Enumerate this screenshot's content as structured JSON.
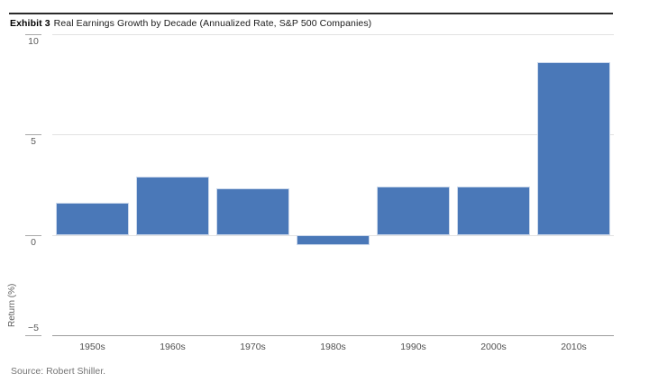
{
  "header": {
    "exhibit_label": "Exhibit 3",
    "title": "Real Earnings Growth by Decade (Annualized Rate, S&P 500 Companies)"
  },
  "footer": {
    "source": "Source: Robert Shiller."
  },
  "colors": {
    "bar_fill": "#4a78b8",
    "bar_edge": "#ccd9ec",
    "gridline": "#e2e2e2",
    "axis_line": "#9c9c9c",
    "tick_text": "#5a5a5a",
    "title_text": "#1a1a1a",
    "source_text": "#757575"
  },
  "chart_data": {
    "type": "bar",
    "title": "Real Earnings Growth by Decade (Annualized Rate, S&P 500 Companies)",
    "categories": [
      "1950s",
      "1960s",
      "1970s",
      "1980s",
      "1990s",
      "2000s",
      "2010s"
    ],
    "values": [
      1.6,
      2.9,
      2.3,
      -0.5,
      2.4,
      2.4,
      8.6
    ],
    "xlabel": "",
    "ylabel": "Return (%)",
    "ylim": [
      -5,
      10
    ],
    "yticks": [
      10,
      5,
      0,
      -5
    ],
    "grid": true,
    "legend_position": "none",
    "bar_color": "#4a78b8"
  }
}
